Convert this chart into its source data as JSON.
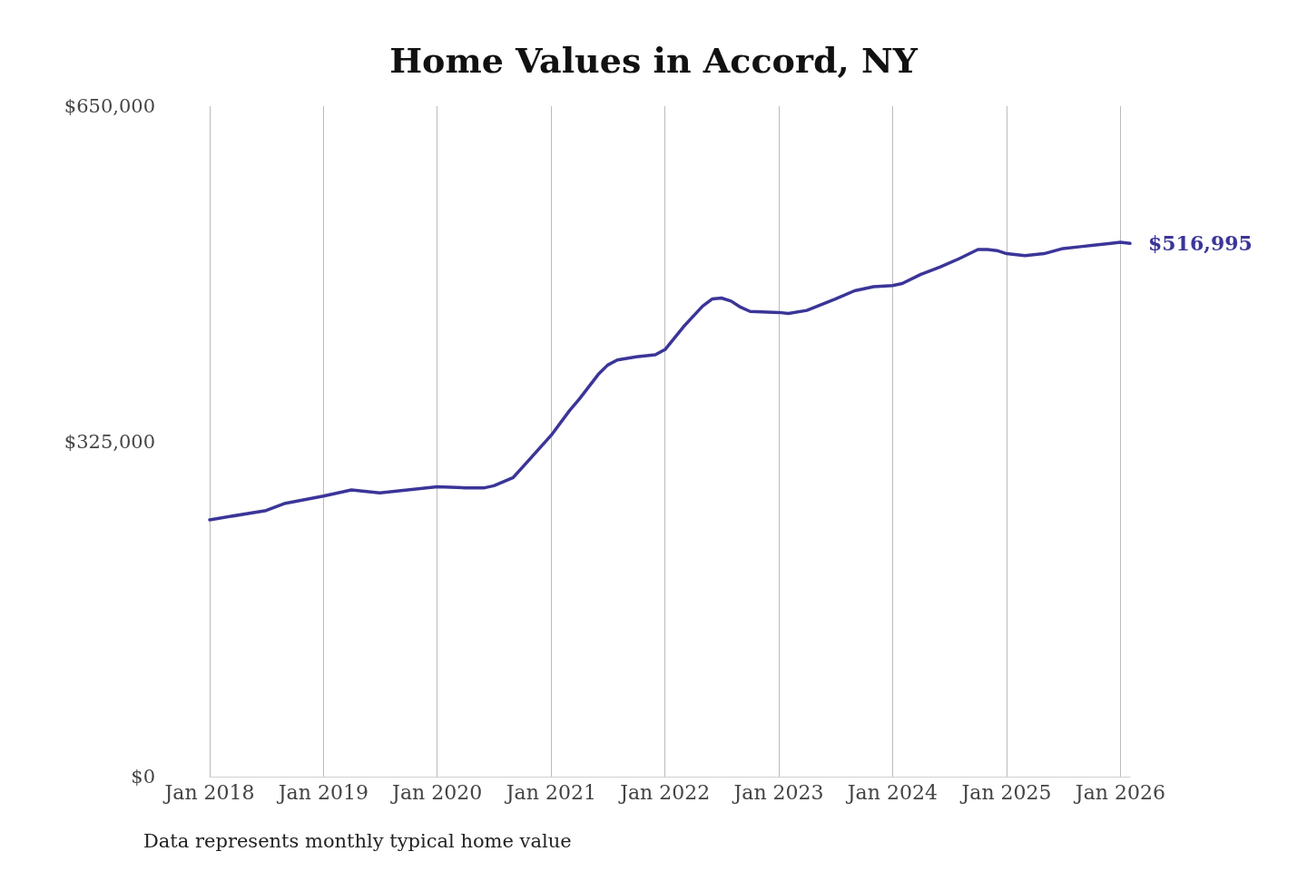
{
  "chart_data": {
    "type": "line",
    "title": "Home Values in Accord, NY",
    "x": [
      "2018-01",
      "2018-07",
      "2018-09",
      "2019-01",
      "2019-04",
      "2019-07",
      "2020-01",
      "2020-04",
      "2020-06",
      "2020-07",
      "2020-09",
      "2020-10",
      "2021-01",
      "2021-03",
      "2021-04",
      "2021-06",
      "2021-07",
      "2021-08",
      "2021-10",
      "2021-12",
      "2022-01",
      "2022-03",
      "2022-05",
      "2022-06",
      "2022-07",
      "2022-08",
      "2022-09",
      "2022-10",
      "2023-01",
      "2023-02",
      "2023-04",
      "2023-07",
      "2023-09",
      "2023-11",
      "2024-01",
      "2024-02",
      "2024-04",
      "2024-06",
      "2024-08",
      "2024-10",
      "2024-11",
      "2024-12",
      "2025-01",
      "2025-03",
      "2025-05",
      "2025-07",
      "2025-09",
      "2025-10",
      "2025-12",
      "2026-01",
      "2026-02"
    ],
    "series": [
      {
        "color": "#3b3598",
        "values": [
          249000,
          258000,
          265000,
          272000,
          278000,
          275000,
          281000,
          280000,
          280000,
          282000,
          290000,
          300000,
          331000,
          355000,
          366000,
          390000,
          399000,
          404000,
          407000,
          409000,
          414000,
          436000,
          456000,
          463000,
          464000,
          461000,
          455000,
          451000,
          450000,
          449000,
          452000,
          463000,
          471000,
          475000,
          476000,
          478000,
          487000,
          494000,
          502000,
          511000,
          511000,
          510000,
          507000,
          505000,
          507000,
          512000,
          514000,
          515000,
          517000,
          518000,
          516995
        ]
      }
    ],
    "xticks": [
      {
        "value": "2018-01",
        "label": "Jan 2018"
      },
      {
        "value": "2019-01",
        "label": "Jan 2019"
      },
      {
        "value": "2020-01",
        "label": "Jan 2020"
      },
      {
        "value": "2021-01",
        "label": "Jan 2021"
      },
      {
        "value": "2022-01",
        "label": "Jan 2022"
      },
      {
        "value": "2023-01",
        "label": "Jan 2023"
      },
      {
        "value": "2024-01",
        "label": "Jan 2024"
      },
      {
        "value": "2025-01",
        "label": "Jan 2025"
      },
      {
        "value": "2026-01",
        "label": "Jan 2026"
      }
    ],
    "xlim": [
      "2018-01",
      "2026-02"
    ],
    "ylim": [
      0,
      650000
    ],
    "yticks": [
      {
        "value": 0,
        "label": "$0"
      },
      {
        "value": 325000,
        "label": "$325,000"
      },
      {
        "value": 650000,
        "label": "$650,000"
      }
    ],
    "grid": "x",
    "marker": "none",
    "line_style": "solid",
    "annotations": [
      {
        "text": "$516,995",
        "x": "2026-02",
        "y": 516995
      },
      "Data represents monthly typical home value"
    ]
  }
}
